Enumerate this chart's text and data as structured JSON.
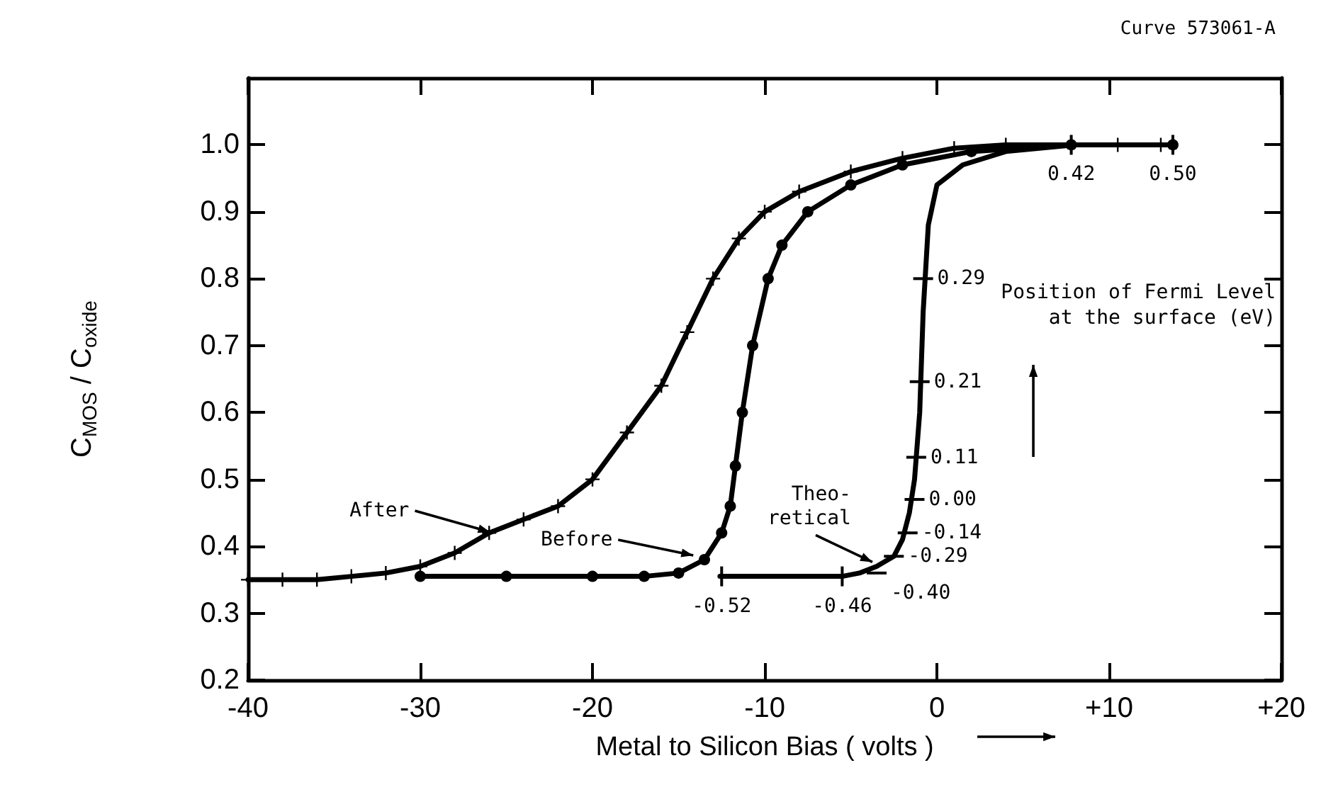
{
  "chart_data": {
    "type": "line",
    "xlabel": "Metal to Silicon Bias ( volts )",
    "ylabel": "C$_{MOS}$ / C$_{oxide}$",
    "xlim": [
      -40,
      20
    ],
    "xticks": [
      -40,
      -30,
      -20,
      -10,
      0,
      {
        "value": 10,
        "label": "+10"
      },
      {
        "value": 20,
        "label": "+20"
      }
    ],
    "ylim": [
      0.2,
      1.1
    ],
    "yticks": [
      {
        "value": 0.2,
        "label": "0.2"
      },
      {
        "value": 0.3,
        "label": "0.3"
      },
      {
        "value": 0.4,
        "label": "0.4"
      },
      {
        "value": 0.5,
        "label": "0.5"
      },
      {
        "value": 0.6,
        "label": "0.6"
      },
      {
        "value": 0.7,
        "label": "0.7"
      },
      {
        "value": 0.8,
        "label": "0.8"
      },
      {
        "value": 0.9,
        "label": "0.9"
      },
      {
        "value": 1.0,
        "label": "1.0"
      }
    ],
    "grid": false,
    "line_style": "solid",
    "series": [
      {
        "color": "#000000",
        "marker": "cross",
        "x": [
          -40,
          -38,
          -36,
          -34,
          -32,
          -30,
          -28,
          -26,
          -24,
          -22,
          -20,
          -18,
          -16,
          -14.5,
          -13,
          -11.5,
          -10,
          -8,
          -5,
          -2,
          1,
          4,
          10.5,
          13
        ],
        "values": [
          0.35,
          0.35,
          0.35,
          0.355,
          0.36,
          0.37,
          0.39,
          0.42,
          0.44,
          0.46,
          0.5,
          0.57,
          0.64,
          0.72,
          0.8,
          0.86,
          0.9,
          0.93,
          0.96,
          0.98,
          0.995,
          1.0,
          1.0,
          1.0
        ]
      },
      {
        "color": "#000000",
        "marker": "circle",
        "x": [
          -30,
          -25,
          -20,
          -17,
          -15,
          -13.5,
          -12.5,
          -12,
          -11.7,
          -11.3,
          -10.7,
          -9.8,
          -9,
          -7.5,
          -5,
          -2,
          2,
          7.8,
          13.7
        ],
        "values": [
          0.355,
          0.355,
          0.355,
          0.355,
          0.36,
          0.38,
          0.42,
          0.46,
          0.52,
          0.6,
          0.7,
          0.8,
          0.85,
          0.9,
          0.94,
          0.97,
          0.99,
          1.0,
          1.0
        ]
      },
      {
        "color": "#000000",
        "marker": "none",
        "x": [
          -12.6,
          -8,
          -5.5,
          -4.5,
          -3.5,
          -2.5,
          -2,
          -1.6,
          -1.3,
          -1,
          -0.8,
          -0.5,
          0,
          1.5,
          4,
          8
        ],
        "values": [
          0.355,
          0.355,
          0.355,
          0.36,
          0.37,
          0.385,
          0.41,
          0.45,
          0.5,
          0.6,
          0.75,
          0.88,
          0.94,
          0.97,
          0.99,
          1.0
        ]
      }
    ],
    "annotations": [
      "Curve 573061-A",
      "Position of Fermi Level at the surface (eV)",
      {
        "text": "After",
        "x": -25.7,
        "y": 0.415
      },
      {
        "text": "Before",
        "x": -13.9,
        "y": 0.38
      },
      {
        "text": "Theo-\nretical",
        "x": -3.5,
        "y": 0.37
      },
      {
        "text": "0.42",
        "x": 7.8,
        "y": 1.0
      },
      {
        "text": "0.50",
        "x": 13.7,
        "y": 1.0
      },
      {
        "text": "0.29",
        "x": -0.8,
        "y": 0.8
      },
      {
        "text": "0.21",
        "x": -1.0,
        "y": 0.646
      },
      {
        "text": "0.11",
        "x": -1.2,
        "y": 0.533
      },
      {
        "text": "0.00",
        "x": -1.3,
        "y": 0.47
      },
      {
        "text": "-0.14",
        "x": -1.7,
        "y": 0.42
      },
      {
        "text": "-0.29",
        "x": -2.5,
        "y": 0.385
      },
      {
        "text": "-0.40",
        "x": -3.5,
        "y": 0.36
      },
      {
        "text": "-0.46",
        "x": -5.5,
        "y": 0.355
      },
      {
        "text": "-0.52",
        "x": -12.5,
        "y": 0.355
      }
    ]
  }
}
